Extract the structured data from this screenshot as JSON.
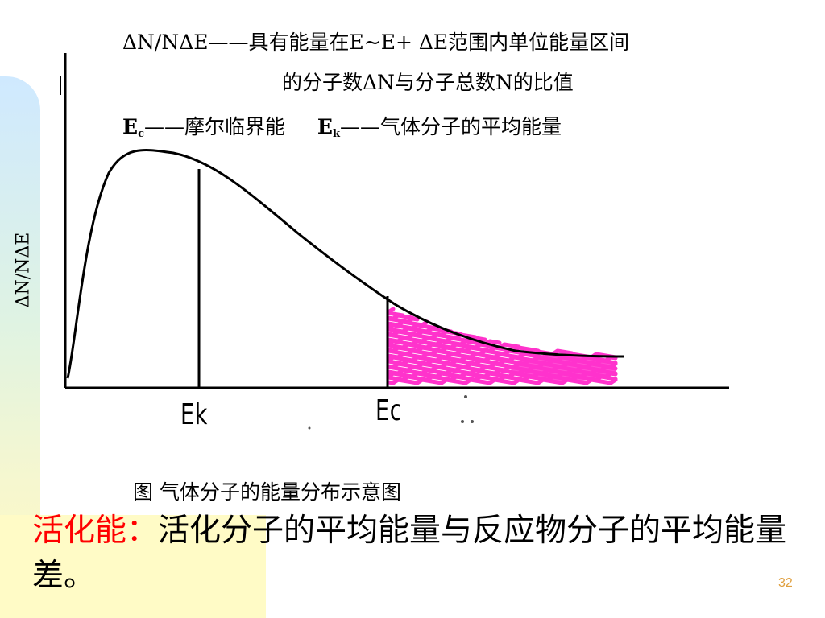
{
  "legend": {
    "line1": "ΔN/NΔE——具有能量在E~E+ ΔE范围内单位能量区间",
    "line2": "的分子数ΔN与分子总数N的比值",
    "line3_ec_symbol": "E",
    "line3_ec_sub": "c",
    "line3_ec_text": "——摩尔临界能",
    "line3_ek_symbol": "E",
    "line3_ek_sub": "k",
    "line3_ek_text": "——气体分子的平均能量"
  },
  "diagram": {
    "y_axis_label": "ΔN/NΔE",
    "x_marker_ek": "Ek",
    "x_marker_ec": "Ec",
    "caption": "图  气体分子的能量分布示意图",
    "colors": {
      "curve": "#000000",
      "shade": "#ff33cc"
    }
  },
  "definition": {
    "term": "活化能：",
    "text": "活化分子的平均能量与反应物分子的平均能量差。"
  },
  "page_number": "32"
}
